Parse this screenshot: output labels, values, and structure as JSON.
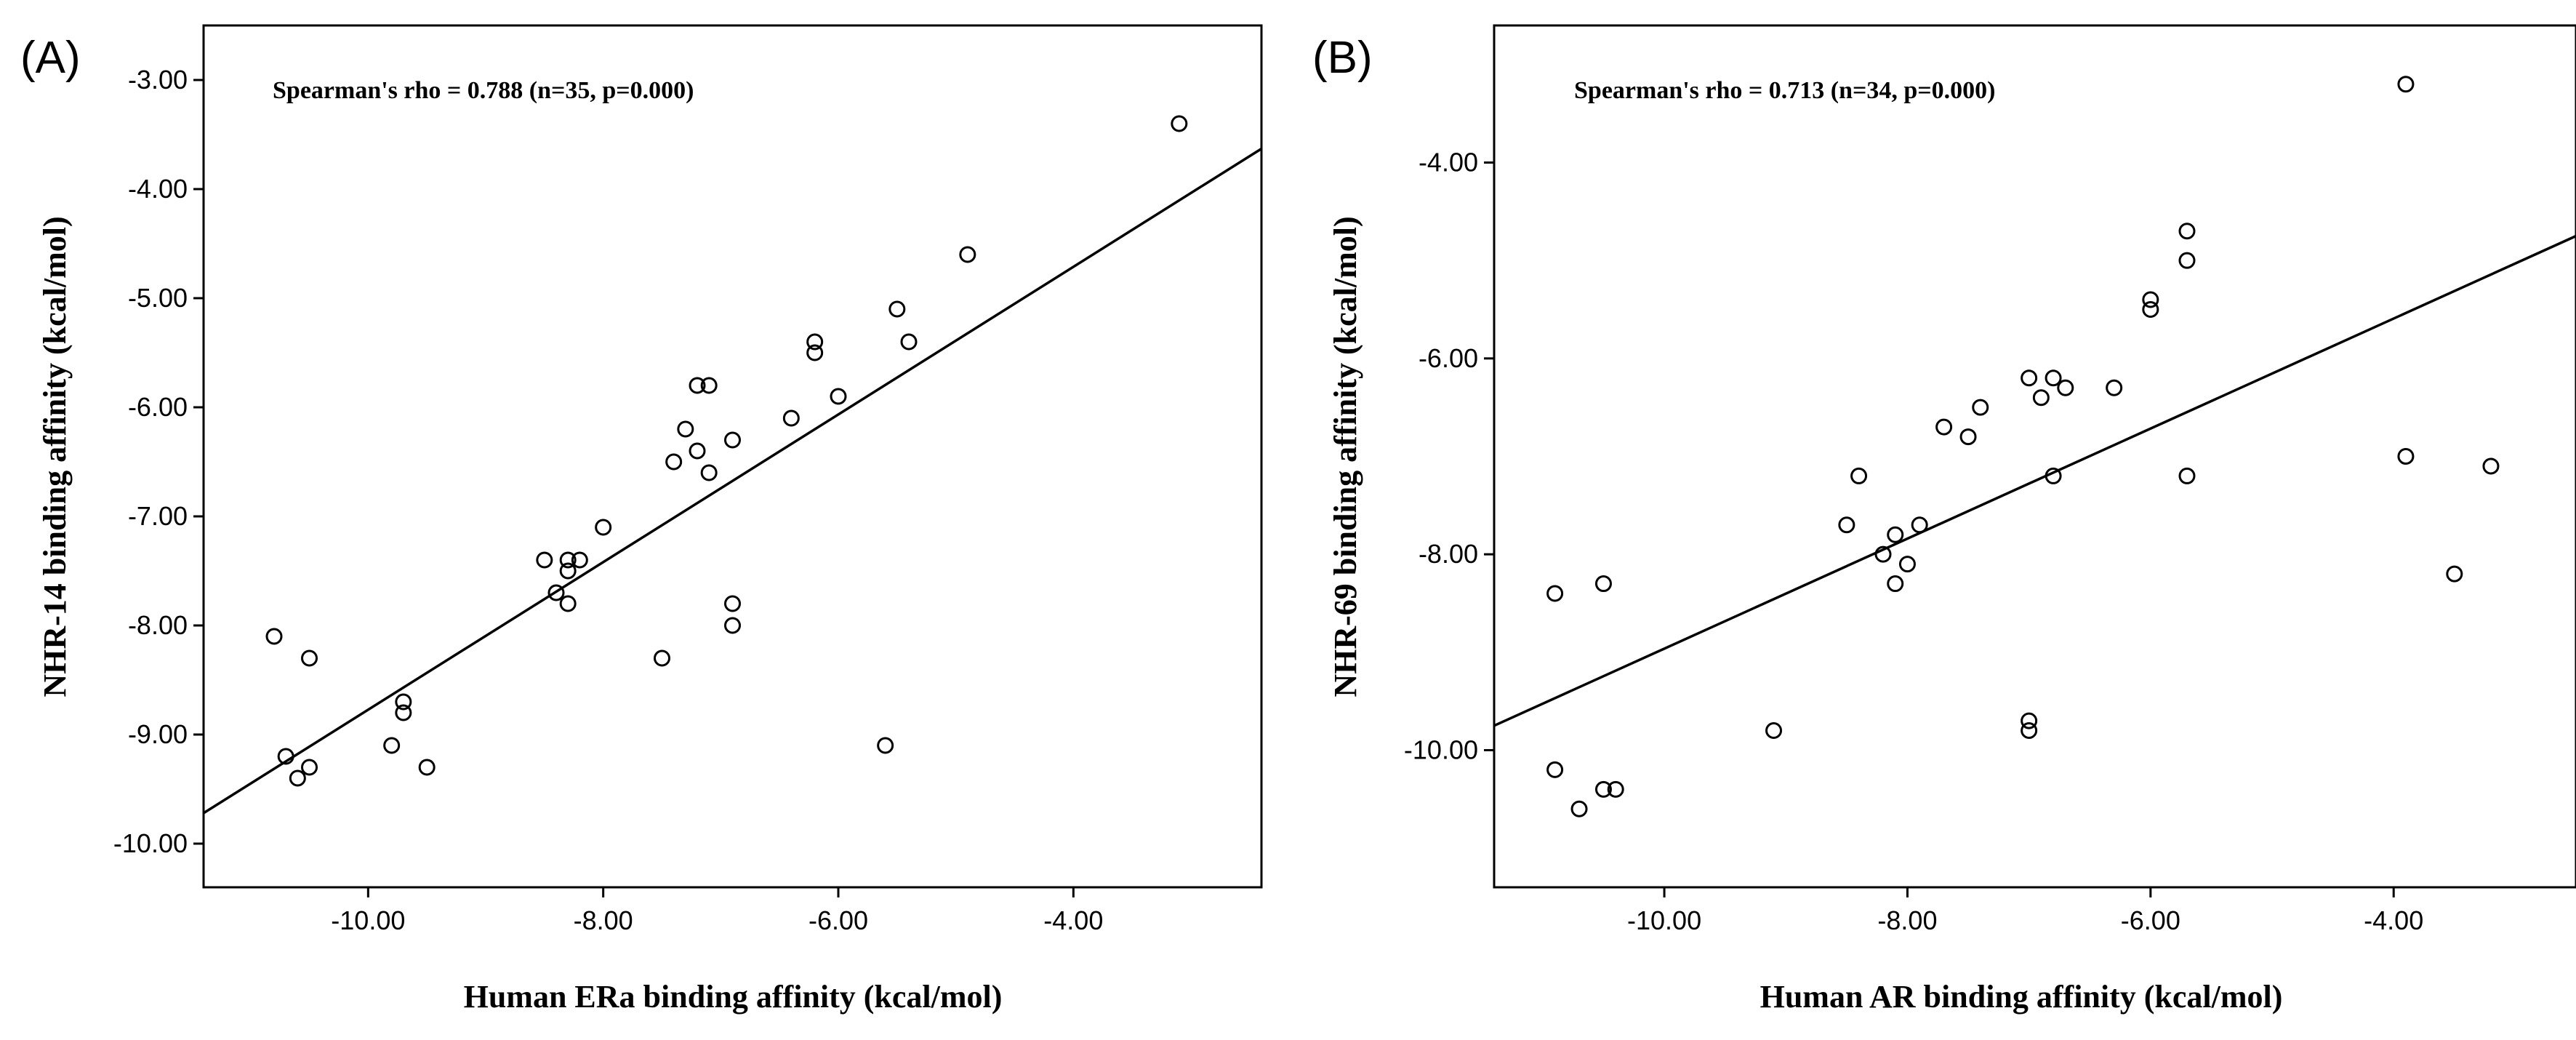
{
  "chart_data": [
    {
      "type": "scatter",
      "panel_label": "(A)",
      "annotation": "Spearman's rho = 0.788 (n=35, p=0.000)",
      "xlabel": "Human ERa binding affinity (kcal/mol)",
      "ylabel": "NHR-14 binding affinity (kcal/mol)",
      "xlim": [
        -11.4,
        -2.4
      ],
      "ylim": [
        -10.4,
        -2.5
      ],
      "xticks": [
        -10.0,
        -8.0,
        -6.0,
        -4.0
      ],
      "xtick_labels": [
        "-10.00",
        "-8.00",
        "-6.00",
        "-4.00"
      ],
      "yticks": [
        -3.0,
        -4.0,
        -5.0,
        -6.0,
        -7.0,
        -8.0,
        -9.0,
        -10.0
      ],
      "ytick_labels": [
        "-3.00",
        "-4.00",
        "-5.00",
        "-6.00",
        "-7.00",
        "-8.00",
        "-9.00",
        "-10.00"
      ],
      "points": [
        {
          "x": -10.8,
          "y": -8.1
        },
        {
          "x": -10.7,
          "y": -9.2
        },
        {
          "x": -10.6,
          "y": -9.4
        },
        {
          "x": -10.5,
          "y": -8.3
        },
        {
          "x": -10.5,
          "y": -9.3
        },
        {
          "x": -9.8,
          "y": -9.1
        },
        {
          "x": -9.7,
          "y": -8.7
        },
        {
          "x": -9.7,
          "y": -8.8
        },
        {
          "x": -9.5,
          "y": -9.3
        },
        {
          "x": -8.5,
          "y": -7.4
        },
        {
          "x": -8.4,
          "y": -7.7
        },
        {
          "x": -8.3,
          "y": -7.4
        },
        {
          "x": -8.3,
          "y": -7.5
        },
        {
          "x": -8.3,
          "y": -7.8
        },
        {
          "x": -8.2,
          "y": -7.4
        },
        {
          "x": -8.0,
          "y": -7.1
        },
        {
          "x": -7.5,
          "y": -8.3
        },
        {
          "x": -7.4,
          "y": -6.5
        },
        {
          "x": -7.3,
          "y": -6.2
        },
        {
          "x": -7.2,
          "y": -5.8
        },
        {
          "x": -7.2,
          "y": -6.4
        },
        {
          "x": -7.1,
          "y": -5.8
        },
        {
          "x": -7.1,
          "y": -6.6
        },
        {
          "x": -6.9,
          "y": -6.3
        },
        {
          "x": -6.9,
          "y": -7.8
        },
        {
          "x": -6.9,
          "y": -8.0
        },
        {
          "x": -6.4,
          "y": -6.1
        },
        {
          "x": -6.2,
          "y": -5.4
        },
        {
          "x": -6.2,
          "y": -5.5
        },
        {
          "x": -6.0,
          "y": -5.9
        },
        {
          "x": -5.6,
          "y": -9.1
        },
        {
          "x": -5.5,
          "y": -5.1
        },
        {
          "x": -5.4,
          "y": -5.4
        },
        {
          "x": -4.9,
          "y": -4.6
        },
        {
          "x": -3.1,
          "y": -3.4
        }
      ],
      "fit_line": {
        "x": [
          -11.4,
          -2.4
        ],
        "y": [
          -9.72,
          -3.63
        ]
      }
    },
    {
      "type": "scatter",
      "panel_label": "(B)",
      "annotation": "Spearman's rho = 0.713 (n=34, p=0.000)",
      "xlabel": "Human AR binding affinity (kcal/mol)",
      "ylabel": "NHR-69 binding affinity (kcal/mol)",
      "xlim": [
        -11.4,
        -2.5
      ],
      "ylim": [
        -11.4,
        -2.6
      ],
      "xticks": [
        -10.0,
        -8.0,
        -6.0,
        -4.0
      ],
      "xtick_labels": [
        "-10.00",
        "-8.00",
        "-6.00",
        "-4.00"
      ],
      "yticks": [
        -4.0,
        -6.0,
        -8.0,
        -10.0
      ],
      "ytick_labels": [
        "-4.00",
        "-6.00",
        "-8.00",
        "-10.00"
      ],
      "points": [
        {
          "x": -10.9,
          "y": -8.4
        },
        {
          "x": -10.9,
          "y": -10.2
        },
        {
          "x": -10.7,
          "y": -10.6
        },
        {
          "x": -10.5,
          "y": -8.3
        },
        {
          "x": -10.5,
          "y": -10.4
        },
        {
          "x": -10.4,
          "y": -10.4
        },
        {
          "x": -9.1,
          "y": -9.8
        },
        {
          "x": -8.5,
          "y": -7.7
        },
        {
          "x": -8.4,
          "y": -7.2
        },
        {
          "x": -8.2,
          "y": -8.0
        },
        {
          "x": -8.1,
          "y": -7.8
        },
        {
          "x": -8.1,
          "y": -8.3
        },
        {
          "x": -8.0,
          "y": -8.1
        },
        {
          "x": -7.9,
          "y": -7.7
        },
        {
          "x": -7.7,
          "y": -6.7
        },
        {
          "x": -7.5,
          "y": -6.8
        },
        {
          "x": -7.4,
          "y": -6.5
        },
        {
          "x": -7.0,
          "y": -6.2
        },
        {
          "x": -7.0,
          "y": -9.7
        },
        {
          "x": -7.0,
          "y": -9.8
        },
        {
          "x": -6.9,
          "y": -6.4
        },
        {
          "x": -6.8,
          "y": -6.2
        },
        {
          "x": -6.8,
          "y": -7.2
        },
        {
          "x": -6.7,
          "y": -6.3
        },
        {
          "x": -6.3,
          "y": -6.3
        },
        {
          "x": -6.0,
          "y": -5.4
        },
        {
          "x": -6.0,
          "y": -5.5
        },
        {
          "x": -5.7,
          "y": -4.7
        },
        {
          "x": -5.7,
          "y": -5.0
        },
        {
          "x": -5.7,
          "y": -7.2
        },
        {
          "x": -3.9,
          "y": -3.2
        },
        {
          "x": -3.9,
          "y": -7.0
        },
        {
          "x": -3.5,
          "y": -8.2
        },
        {
          "x": -3.2,
          "y": -7.1
        }
      ],
      "fit_line": {
        "x": [
          -11.4,
          -2.5
        ],
        "y": [
          -9.75,
          -4.75
        ]
      }
    }
  ]
}
